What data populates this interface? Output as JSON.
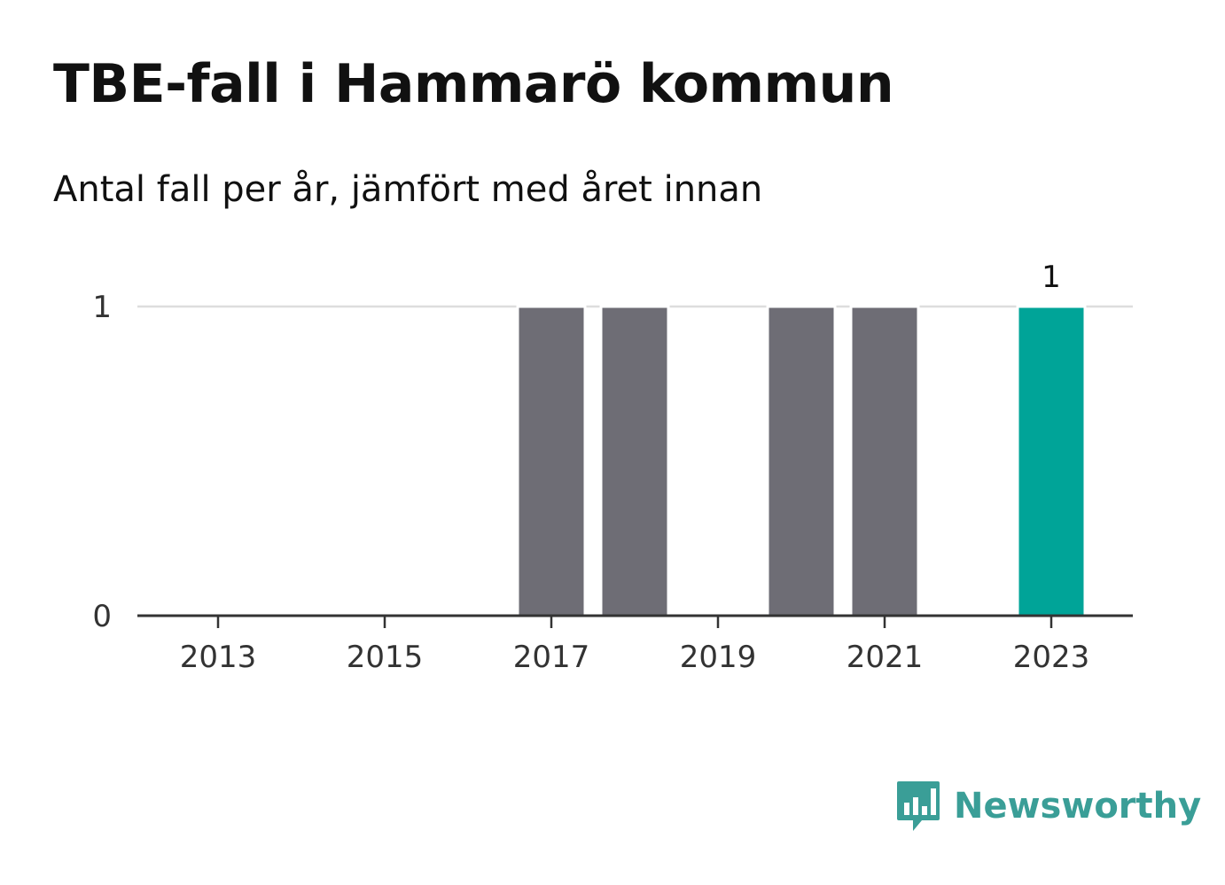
{
  "title": "TBE-fall i Hammarö kommun",
  "subtitle": "Antal fall per år, jämfört med året innan",
  "brand": {
    "name": "Newsworthy",
    "icon": "newsworthy-logo-icon",
    "color": "#3a9e97"
  },
  "colors": {
    "bar": "#6e6d75",
    "highlight": "#00a498",
    "grid": "#dddddd",
    "axis": "#333333"
  },
  "chart_data": {
    "type": "bar",
    "categories": [
      "2013",
      "2014",
      "2015",
      "2016",
      "2017",
      "2018",
      "2019",
      "2020",
      "2021",
      "2022",
      "2023"
    ],
    "values": [
      0,
      0,
      0,
      0,
      1,
      1,
      0,
      1,
      1,
      0,
      1
    ],
    "highlight_index": 10,
    "x_tick_labels": [
      "2013",
      "2015",
      "2017",
      "2019",
      "2021",
      "2023"
    ],
    "y_ticks": [
      0,
      1
    ],
    "ylim": [
      0,
      1
    ],
    "data_labels": [
      {
        "category": "2023",
        "text": "1"
      }
    ],
    "xlabel": "",
    "ylabel": "",
    "grid": true
  }
}
